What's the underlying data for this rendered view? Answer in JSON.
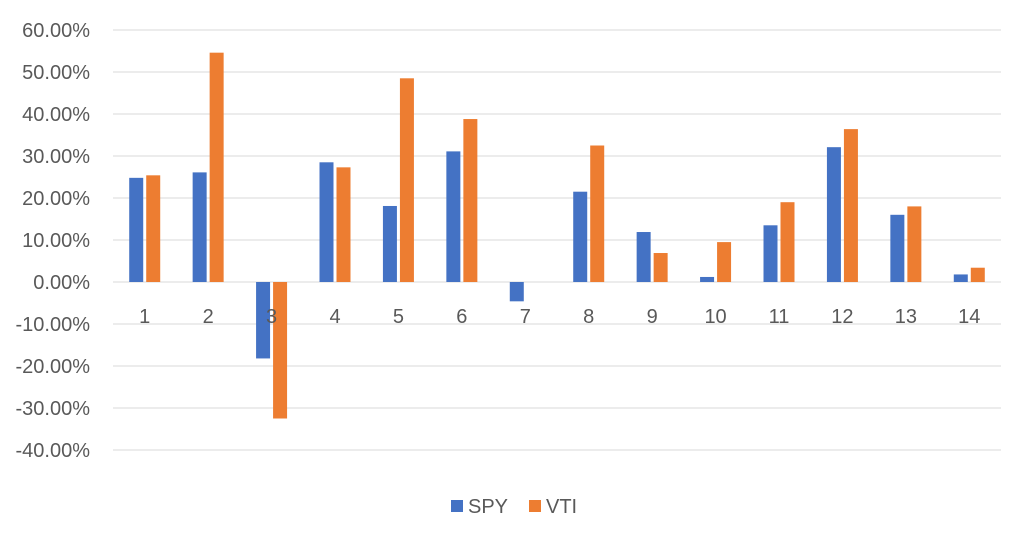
{
  "chart_data": {
    "type": "bar",
    "categories": [
      "1",
      "2",
      "3",
      "4",
      "5",
      "6",
      "7",
      "8",
      "9",
      "10",
      "11",
      "12",
      "13",
      "14"
    ],
    "series": [
      {
        "name": "SPY",
        "color": "#4472C4",
        "values": [
          24.8,
          26.1,
          -18.2,
          28.5,
          18.1,
          31.1,
          -4.6,
          21.5,
          11.9,
          1.2,
          13.5,
          32.1,
          16.0,
          1.8
        ]
      },
      {
        "name": "VTI",
        "color": "#ED7D31",
        "values": [
          25.4,
          54.6,
          -32.5,
          27.3,
          48.5,
          38.8,
          0,
          32.5,
          6.9,
          9.5,
          19.0,
          36.4,
          18.0,
          3.4
        ]
      }
    ],
    "ylim": [
      -40,
      60
    ],
    "yticks": [
      60,
      50,
      40,
      30,
      20,
      10,
      0,
      -10,
      -20,
      -30,
      -40
    ],
    "ytick_labels": [
      "60.00%",
      "50.00%",
      "40.00%",
      "30.00%",
      "20.00%",
      "10.00%",
      "0.00%",
      "-10.00%",
      "-20.00%",
      "-30.00%",
      "-40.00%"
    ],
    "grid": true,
    "legend_position": "bottom",
    "title": "",
    "xlabel": "",
    "ylabel": ""
  }
}
